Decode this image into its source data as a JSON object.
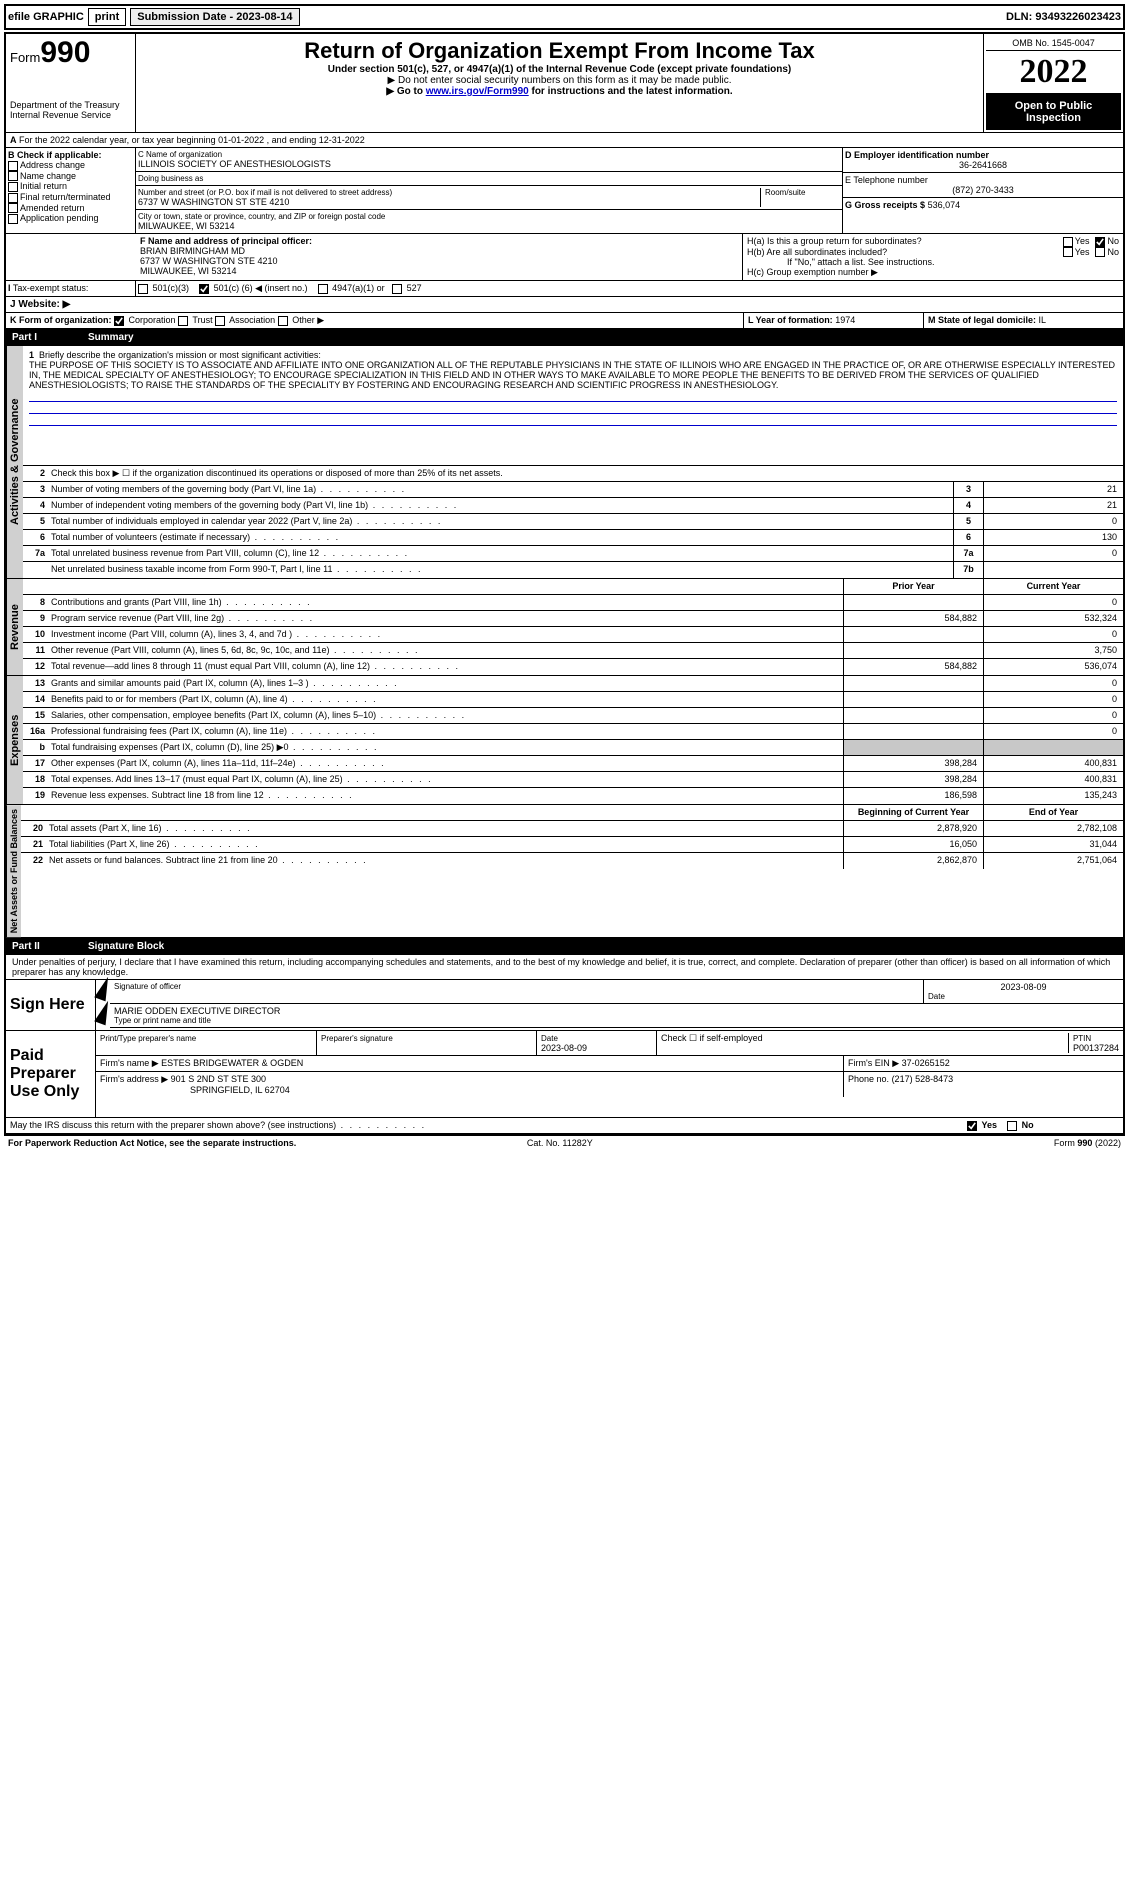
{
  "topbar": {
    "efile_label": "efile GRAPHIC",
    "print_btn": "print",
    "submission_label": "Submission Date - 2023-08-14",
    "dln": "DLN: 93493226023423"
  },
  "header": {
    "form_label": "Form",
    "form_number": "990",
    "dept": "Department of the Treasury",
    "irs": "Internal Revenue Service",
    "title": "Return of Organization Exempt From Income Tax",
    "sub1": "Under section 501(c), 527, or 4947(a)(1) of the Internal Revenue Code (except private foundations)",
    "sub2": "▶ Do not enter social security numbers on this form as it may be made public.",
    "sub3_pre": "▶ Go to ",
    "sub3_link": "www.irs.gov/Form990",
    "sub3_post": " for instructions and the latest information.",
    "omb": "OMB No. 1545-0047",
    "year": "2022",
    "open_public": "Open to Public Inspection"
  },
  "section_a": {
    "a_text": "For the 2022 calendar year, or tax year beginning 01-01-2022   , and ending 12-31-2022",
    "b_label": "B Check if applicable:",
    "b_opts": [
      "Address change",
      "Name change",
      "Initial return",
      "Final return/terminated",
      "Amended return",
      "Application pending"
    ],
    "c_label": "C Name of organization",
    "c_name": "ILLINOIS SOCIETY OF ANESTHESIOLOGISTS",
    "dba_label": "Doing business as",
    "dba": "",
    "addr_label": "Number and street (or P.O. box if mail is not delivered to street address)",
    "addr": "6737 W WASHINGTON ST STE 4210",
    "room_label": "Room/suite",
    "city_label": "City or town, state or province, country, and ZIP or foreign postal code",
    "city": "MILWAUKEE, WI  53214",
    "d_label": "D Employer identification number",
    "d_ein": "36-2641668",
    "e_label": "E Telephone number",
    "e_phone": "(872) 270-3433",
    "g_label": "G Gross receipts $",
    "g_amount": "536,074",
    "f_label": "F  Name and address of principal officer:",
    "f_name": "BRIAN BIRMINGHAM MD",
    "f_addr1": "6737 W WASHINGTON STE 4210",
    "f_addr2": "MILWAUKEE, WI  53214",
    "h_a": "H(a)  Is this a group return for subordinates?",
    "h_b": "H(b)  Are all subordinates included?",
    "h_b_note": "If \"No,\" attach a list. See instructions.",
    "h_c": "H(c)  Group exemption number ▶",
    "yes": "Yes",
    "no": "No"
  },
  "tax_status": {
    "i_label": "Tax-exempt status:",
    "opt1": "501(c)(3)",
    "opt2_pre": "501(c) (",
    "opt2_num": "6",
    "opt2_post": ") ◀ (insert no.)",
    "opt3": "4947(a)(1) or",
    "opt4": "527",
    "j_label": "Website: ▶",
    "k_label": "K Form of organization:",
    "k_corp": "Corporation",
    "k_trust": "Trust",
    "k_assoc": "Association",
    "k_other": "Other ▶",
    "l_label": "L Year of formation:",
    "l_val": "1974",
    "m_label": "M State of legal domicile:",
    "m_val": "IL"
  },
  "part1": {
    "part_label": "Part I",
    "part_title": "Summary",
    "side_activities": "Activities & Governance",
    "side_revenue": "Revenue",
    "side_expenses": "Expenses",
    "side_netassets": "Net Assets or Fund Balances",
    "line1_label": "Briefly describe the organization's mission or most significant activities:",
    "mission": "THE PURPOSE OF THIS SOCIETY IS TO ASSOCIATE AND AFFILIATE INTO ONE ORGANIZATION ALL OF THE REPUTABLE PHYSICIANS IN THE STATE OF ILLINOIS WHO ARE ENGAGED IN THE PRACTICE OF, OR ARE OTHERWISE ESPECIALLY INTERESTED IN, THE MEDICAL SPECIALTY OF ANESTHESIOLOGY; TO ENCOURAGE SPECIALIZATION IN THIS FIELD AND IN OTHER WAYS TO MAKE AVAILABLE TO MORE PEOPLE THE BENEFITS TO BE DERIVED FROM THE SERVICES OF QUALIFIED ANESTHESIOLOGISTS; TO RAISE THE STANDARDS OF THE SPECIALITY BY FOSTERING AND ENCOURAGING RESEARCH AND SCIENTIFIC PROGRESS IN ANESTHESIOLOGY.",
    "line2": "Check this box ▶ ☐ if the organization discontinued its operations or disposed of more than 25% of its net assets.",
    "lines_single": [
      {
        "n": "3",
        "t": "Number of voting members of the governing body (Part VI, line 1a)",
        "box": "3",
        "v": "21"
      },
      {
        "n": "4",
        "t": "Number of independent voting members of the governing body (Part VI, line 1b)",
        "box": "4",
        "v": "21"
      },
      {
        "n": "5",
        "t": "Total number of individuals employed in calendar year 2022 (Part V, line 2a)",
        "box": "5",
        "v": "0"
      },
      {
        "n": "6",
        "t": "Total number of volunteers (estimate if necessary)",
        "box": "6",
        "v": "130"
      },
      {
        "n": "7a",
        "t": "Total unrelated business revenue from Part VIII, column (C), line 12",
        "box": "7a",
        "v": "0"
      },
      {
        "n": "",
        "t": "Net unrelated business taxable income from Form 990-T, Part I, line 11",
        "box": "7b",
        "v": ""
      }
    ],
    "col_prior": "Prior Year",
    "col_curr": "Current Year",
    "revenue_lines": [
      {
        "n": "8",
        "t": "Contributions and grants (Part VIII, line 1h)",
        "p": "",
        "c": "0"
      },
      {
        "n": "9",
        "t": "Program service revenue (Part VIII, line 2g)",
        "p": "584,882",
        "c": "532,324"
      },
      {
        "n": "10",
        "t": "Investment income (Part VIII, column (A), lines 3, 4, and 7d )",
        "p": "",
        "c": "0"
      },
      {
        "n": "11",
        "t": "Other revenue (Part VIII, column (A), lines 5, 6d, 8c, 9c, 10c, and 11e)",
        "p": "",
        "c": "3,750"
      },
      {
        "n": "12",
        "t": "Total revenue—add lines 8 through 11 (must equal Part VIII, column (A), line 12)",
        "p": "584,882",
        "c": "536,074"
      }
    ],
    "expense_lines": [
      {
        "n": "13",
        "t": "Grants and similar amounts paid (Part IX, column (A), lines 1–3 )",
        "p": "",
        "c": "0"
      },
      {
        "n": "14",
        "t": "Benefits paid to or for members (Part IX, column (A), line 4)",
        "p": "",
        "c": "0"
      },
      {
        "n": "15",
        "t": "Salaries, other compensation, employee benefits (Part IX, column (A), lines 5–10)",
        "p": "",
        "c": "0"
      },
      {
        "n": "16a",
        "t": "Professional fundraising fees (Part IX, column (A), line 11e)",
        "p": "",
        "c": "0"
      },
      {
        "n": "b",
        "t": "Total fundraising expenses (Part IX, column (D), line 25) ▶0",
        "p": "GREY",
        "c": "GREY"
      },
      {
        "n": "17",
        "t": "Other expenses (Part IX, column (A), lines 11a–11d, 11f–24e)",
        "p": "398,284",
        "c": "400,831"
      },
      {
        "n": "18",
        "t": "Total expenses. Add lines 13–17 (must equal Part IX, column (A), line 25)",
        "p": "398,284",
        "c": "400,831"
      },
      {
        "n": "19",
        "t": "Revenue less expenses. Subtract line 18 from line 12",
        "p": "186,598",
        "c": "135,243"
      }
    ],
    "col_begin": "Beginning of Current Year",
    "col_end": "End of Year",
    "net_lines": [
      {
        "n": "20",
        "t": "Total assets (Part X, line 16)",
        "p": "2,878,920",
        "c": "2,782,108"
      },
      {
        "n": "21",
        "t": "Total liabilities (Part X, line 26)",
        "p": "16,050",
        "c": "31,044"
      },
      {
        "n": "22",
        "t": "Net assets or fund balances. Subtract line 21 from line 20",
        "p": "2,862,870",
        "c": "2,751,064"
      }
    ]
  },
  "part2": {
    "part_label": "Part II",
    "part_title": "Signature Block",
    "penalties": "Under penalties of perjury, I declare that I have examined this return, including accompanying schedules and statements, and to the best of my knowledge and belief, it is true, correct, and complete. Declaration of preparer (other than officer) is based on all information of which preparer has any knowledge.",
    "sign_here": "Sign Here",
    "sig_officer_lbl": "Signature of officer",
    "sig_date": "2023-08-09",
    "date_lbl": "Date",
    "sig_name": "MARIE ODDEN  EXECUTIVE DIRECTOR",
    "sig_name_lbl": "Type or print name and title",
    "paid_lbl": "Paid Preparer Use Only",
    "prep_name_lbl": "Print/Type preparer's name",
    "prep_sig_lbl": "Preparer's signature",
    "prep_date": "2023-08-09",
    "check_if_lbl": "Check ☐ if self-employed",
    "ptin_lbl": "PTIN",
    "ptin": "P00137284",
    "firm_name_lbl": "Firm's name    ▶",
    "firm_name": "ESTES BRIDGEWATER & OGDEN",
    "firm_ein_lbl": "Firm's EIN ▶",
    "firm_ein": "37-0265152",
    "firm_addr_lbl": "Firm's address ▶",
    "firm_addr1": "901 S 2ND ST STE 300",
    "firm_addr2": "SPRINGFIELD, IL  62704",
    "phone_lbl": "Phone no.",
    "phone": "(217) 528-8473",
    "discuss": "May the IRS discuss this return with the preparer shown above? (see instructions)",
    "paperwork": "For Paperwork Reduction Act Notice, see the separate instructions.",
    "cat": "Cat. No. 11282Y",
    "form_footer": "Form 990 (2022)"
  },
  "colors": {
    "link": "#0000cc",
    "header_black": "#000000",
    "grey_side": "#d0d0d0",
    "grey_cell": "#c8c8c8"
  }
}
